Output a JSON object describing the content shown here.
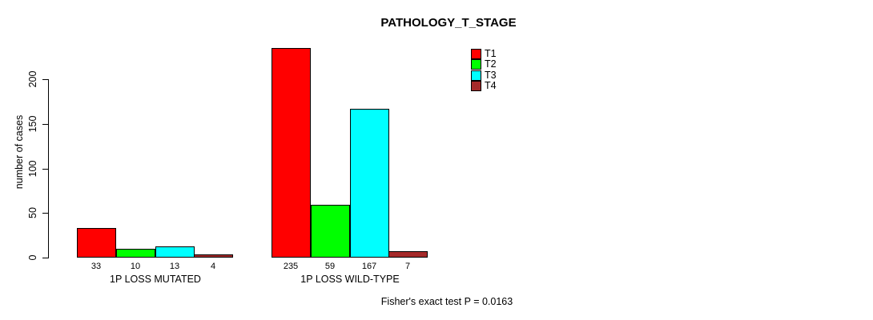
{
  "title": "PATHOLOGY_T_STAGE",
  "footer": "Fisher's exact test P = 0.0163",
  "y_axis": {
    "label": "number of cases",
    "tick_labels": [
      "0",
      "50",
      "100",
      "150",
      "200"
    ]
  },
  "legend": {
    "items": [
      {
        "label": "T1",
        "color": "#FF0000"
      },
      {
        "label": "T2",
        "color": "#00FF00"
      },
      {
        "label": "T3",
        "color": "#00FFFF"
      },
      {
        "label": "T4",
        "color": "#A52A2A"
      }
    ]
  },
  "chart_data": {
    "type": "bar",
    "title": "PATHOLOGY_T_STAGE",
    "categories": [
      "1P LOSS MUTATED",
      "1P LOSS WILD-TYPE"
    ],
    "series": [
      {
        "name": "T1",
        "color": "#FF0000",
        "values": [
          33,
          235
        ]
      },
      {
        "name": "T2",
        "color": "#00FF00",
        "values": [
          10,
          59
        ]
      },
      {
        "name": "T3",
        "color": "#00FFFF",
        "values": [
          13,
          167
        ]
      },
      {
        "name": "T4",
        "color": "#A52A2A",
        "values": [
          4,
          7
        ]
      }
    ],
    "xlabel": "",
    "ylabel": "number of cases",
    "ylim": [
      0,
      240
    ],
    "yticks": [
      0,
      50,
      100,
      150,
      200
    ],
    "bar_value_labels_shown": true,
    "grid": false,
    "legend_position": "top-right",
    "annotation": "Fisher's exact test P = 0.0163"
  }
}
